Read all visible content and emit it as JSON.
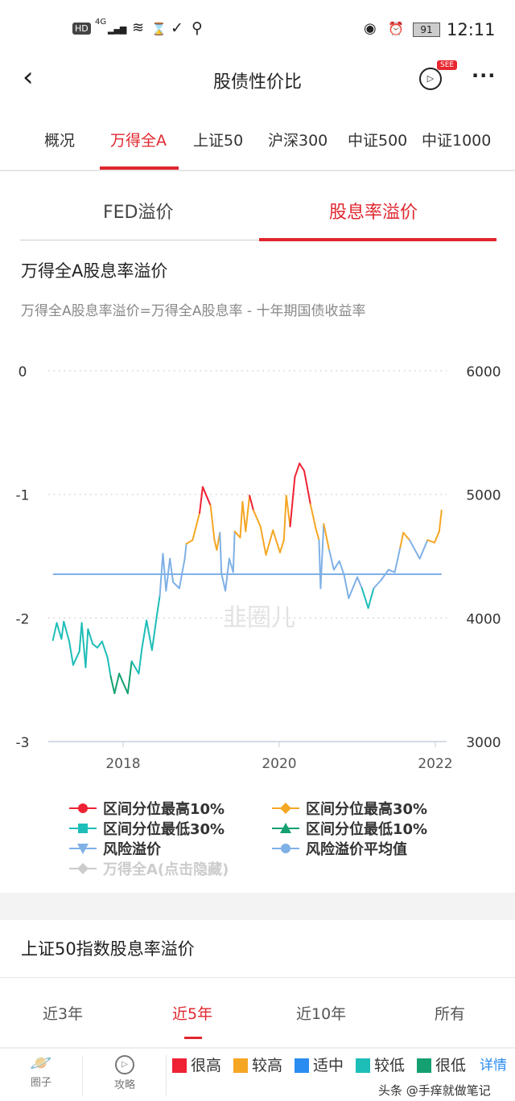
{
  "status": {
    "net": "4G",
    "battery": "91",
    "time": "12:11"
  },
  "header": {
    "title": "股债性价比",
    "badge": "SEE"
  },
  "tabs": [
    {
      "label": "概况"
    },
    {
      "label": "万得全A",
      "active": true
    },
    {
      "label": "上证50"
    },
    {
      "label": "沪深300"
    },
    {
      "label": "中证500"
    },
    {
      "label": "中证1000"
    }
  ],
  "subtabs": [
    {
      "label": "FED溢价"
    },
    {
      "label": "股息率溢价",
      "active": true
    }
  ],
  "section": {
    "title": "万得全A股息率溢价",
    "formula": "万得全A股息率溢价=万得全A股息率 - 十年期国债收益率"
  },
  "chart_data": {
    "type": "line",
    "watermark": "韭圈儿",
    "left_axis": {
      "ticks": [
        "0",
        "-1",
        "-2",
        "-3"
      ],
      "range": [
        -3,
        0
      ]
    },
    "right_axis": {
      "ticks": [
        "6000",
        "5000",
        "4000",
        "3000"
      ],
      "range": [
        3000,
        6000
      ]
    },
    "x_ticks": [
      "2018",
      "2020",
      "2022"
    ],
    "x_range": [
      2017.0,
      2022.2
    ],
    "average": -1.646,
    "thresholds": {
      "red": -1.1,
      "orange": -1.42,
      "blue": -1.82,
      "teal": -2.42
    },
    "colors": {
      "red": "#ee2233",
      "orange": "#f5a623",
      "blue": "#7fb0e6",
      "teal": "#1dbdb8",
      "green": "#14a070",
      "avg": "#7fb0e6"
    },
    "series": [
      [
        2017.1,
        -2.18
      ],
      [
        2017.15,
        -2.04
      ],
      [
        2017.21,
        -2.17
      ],
      [
        2017.24,
        -2.03
      ],
      [
        2017.31,
        -2.19
      ],
      [
        2017.36,
        -2.38
      ],
      [
        2017.44,
        -2.27
      ],
      [
        2017.47,
        -2.04
      ],
      [
        2017.52,
        -2.4
      ],
      [
        2017.55,
        -2.09
      ],
      [
        2017.61,
        -2.21
      ],
      [
        2017.67,
        -2.24
      ],
      [
        2017.73,
        -2.19
      ],
      [
        2017.8,
        -2.32
      ],
      [
        2017.84,
        -2.47
      ],
      [
        2017.89,
        -2.61
      ],
      [
        2017.95,
        -2.45
      ],
      [
        2017.99,
        -2.51
      ],
      [
        2018.06,
        -2.61
      ],
      [
        2018.11,
        -2.35
      ],
      [
        2018.2,
        -2.45
      ],
      [
        2018.24,
        -2.25
      ],
      [
        2018.3,
        -2.02
      ],
      [
        2018.37,
        -2.26
      ],
      [
        2018.43,
        -1.99
      ],
      [
        2018.47,
        -1.82
      ],
      [
        2018.51,
        -1.48
      ],
      [
        2018.55,
        -1.78
      ],
      [
        2018.6,
        -1.52
      ],
      [
        2018.64,
        -1.71
      ],
      [
        2018.72,
        -1.76
      ],
      [
        2018.79,
        -1.52
      ],
      [
        2018.81,
        -1.4
      ],
      [
        2018.89,
        -1.37
      ],
      [
        2018.98,
        -1.15
      ],
      [
        2019.02,
        -0.94
      ],
      [
        2019.08,
        -1.03
      ],
      [
        2019.12,
        -1.09
      ],
      [
        2019.17,
        -1.37
      ],
      [
        2019.2,
        -1.45
      ],
      [
        2019.24,
        -1.31
      ],
      [
        2019.26,
        -1.64
      ],
      [
        2019.31,
        -1.78
      ],
      [
        2019.36,
        -1.52
      ],
      [
        2019.41,
        -1.63
      ],
      [
        2019.43,
        -1.3
      ],
      [
        2019.5,
        -1.35
      ],
      [
        2019.53,
        -1.06
      ],
      [
        2019.57,
        -1.3
      ],
      [
        2019.62,
        -1.01
      ],
      [
        2019.67,
        -1.13
      ],
      [
        2019.76,
        -1.26
      ],
      [
        2019.83,
        -1.49
      ],
      [
        2019.92,
        -1.29
      ],
      [
        2020.01,
        -1.47
      ],
      [
        2020.06,
        -1.37
      ],
      [
        2020.09,
        -1.01
      ],
      [
        2020.14,
        -1.26
      ],
      [
        2020.2,
        -0.86
      ],
      [
        2020.26,
        -0.75
      ],
      [
        2020.32,
        -0.81
      ],
      [
        2020.4,
        -1.08
      ],
      [
        2020.47,
        -1.28
      ],
      [
        2020.51,
        -1.37
      ],
      [
        2020.53,
        -1.76
      ],
      [
        2020.57,
        -1.24
      ],
      [
        2020.64,
        -1.45
      ],
      [
        2020.7,
        -1.61
      ],
      [
        2020.77,
        -1.54
      ],
      [
        2020.83,
        -1.65
      ],
      [
        2020.89,
        -1.84
      ],
      [
        2021.0,
        -1.67
      ],
      [
        2021.06,
        -1.76
      ],
      [
        2021.14,
        -1.92
      ],
      [
        2021.21,
        -1.76
      ],
      [
        2021.31,
        -1.69
      ],
      [
        2021.4,
        -1.61
      ],
      [
        2021.48,
        -1.63
      ],
      [
        2021.55,
        -1.43
      ],
      [
        2021.59,
        -1.31
      ],
      [
        2021.67,
        -1.37
      ],
      [
        2021.8,
        -1.52
      ],
      [
        2021.9,
        -1.37
      ],
      [
        2021.99,
        -1.39
      ],
      [
        2022.05,
        -1.3
      ],
      [
        2022.08,
        -1.13
      ]
    ]
  },
  "legend": [
    {
      "label": "区间分位最高10%",
      "color": "#ee2233",
      "marker": "circle"
    },
    {
      "label": "区间分位最高30%",
      "color": "#f5a623",
      "marker": "diamond"
    },
    {
      "label": "区间分位最低30%",
      "color": "#1dbdb8",
      "marker": "square"
    },
    {
      "label": "区间分位最低10%",
      "color": "#14a070",
      "marker": "triangle"
    },
    {
      "label": "风险溢价",
      "color": "#7fb0e6",
      "marker": "triangle-down"
    },
    {
      "label": "风险溢价平均值",
      "color": "#7fb0e6",
      "marker": "circle"
    },
    {
      "label": "万得全A(点击隐藏)",
      "color": "#cccccc",
      "marker": "diamond",
      "hidden": true
    }
  ],
  "section2": {
    "title": "上证50指数股息率溢价"
  },
  "periods": [
    {
      "label": "近3年"
    },
    {
      "label": "近5年",
      "active": true
    },
    {
      "label": "近10年"
    },
    {
      "label": "所有"
    }
  ],
  "bottom": {
    "circle": "圈子",
    "guide": "攻略",
    "levels": [
      {
        "label": "很高",
        "color": "#ee2233"
      },
      {
        "label": "较高",
        "color": "#f5a623"
      },
      {
        "label": "适中",
        "color": "#2a8cf0"
      },
      {
        "label": "较低",
        "color": "#1dbdb8"
      },
      {
        "label": "很低",
        "color": "#14a070"
      }
    ],
    "detail": "详情",
    "watermark": "头条 @手痒就做笔记"
  }
}
